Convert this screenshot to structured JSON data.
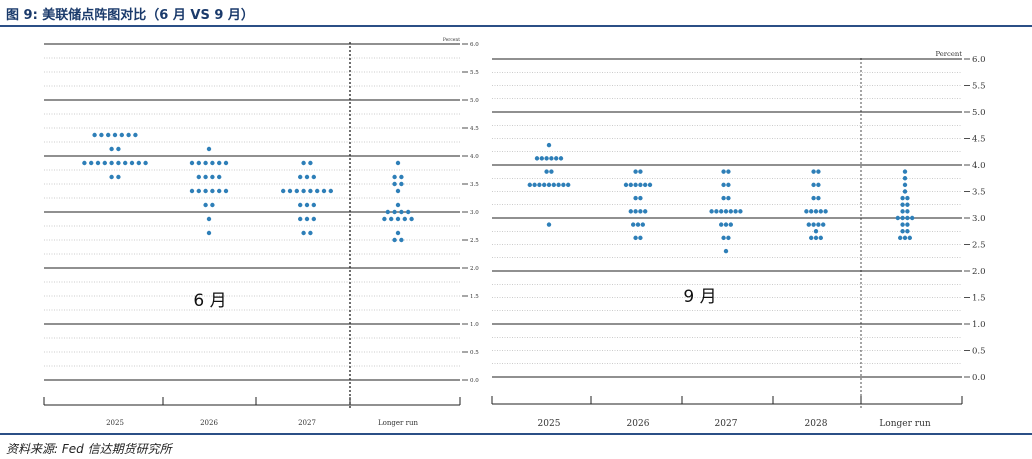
{
  "figure": {
    "title": "图 9:  美联储点阵图对比（6 月 VS 9 月）",
    "source": "资料来源:   Fed  信达期货研究所"
  },
  "chart_data": [
    {
      "type": "scatter",
      "label": "6 月",
      "unit_label": "Percent",
      "categories": [
        "2025",
        "2026",
        "2027",
        "Longer run"
      ],
      "yticks": [
        "6.0",
        "5.5",
        "5.0",
        "4.5",
        "4.0",
        "3.5",
        "3.0",
        "2.5",
        "2.0",
        "1.5",
        "1.0",
        "0.5",
        "0.0"
      ],
      "ylim": [
        0,
        6
      ],
      "dot_color": "#2e7fb8",
      "dots": [
        {
          "category": "2025",
          "rates": [
            {
              "y": 4.375,
              "n": 7
            },
            {
              "y": 4.125,
              "n": 2
            },
            {
              "y": 3.875,
              "n": 10
            },
            {
              "y": 3.625,
              "n": 2
            }
          ]
        },
        {
          "category": "2026",
          "rates": [
            {
              "y": 4.125,
              "n": 1
            },
            {
              "y": 3.875,
              "n": 6
            },
            {
              "y": 3.625,
              "n": 4
            },
            {
              "y": 3.375,
              "n": 6
            },
            {
              "y": 3.125,
              "n": 2
            },
            {
              "y": 2.875,
              "n": 1
            },
            {
              "y": 2.625,
              "n": 1
            }
          ]
        },
        {
          "category": "2027",
          "rates": [
            {
              "y": 3.875,
              "n": 2
            },
            {
              "y": 3.625,
              "n": 3
            },
            {
              "y": 3.375,
              "n": 8
            },
            {
              "y": 3.125,
              "n": 3
            },
            {
              "y": 2.875,
              "n": 3
            },
            {
              "y": 2.625,
              "n": 2
            }
          ]
        },
        {
          "category": "Longer run",
          "rates": [
            {
              "y": 3.875,
              "n": 1
            },
            {
              "y": 3.625,
              "n": 2
            },
            {
              "y": 3.5,
              "n": 2
            },
            {
              "y": 3.375,
              "n": 1
            },
            {
              "y": 3.125,
              "n": 1
            },
            {
              "y": 3.0,
              "n": 4
            },
            {
              "y": 2.875,
              "n": 5
            },
            {
              "y": 2.625,
              "n": 1
            },
            {
              "y": 2.5,
              "n": 2
            }
          ]
        }
      ]
    },
    {
      "type": "scatter",
      "label": "9 月",
      "unit_label": "Percent",
      "categories": [
        "2025",
        "2026",
        "2027",
        "2028",
        "Longer run"
      ],
      "yticks": [
        "6.0",
        "5.5",
        "5.0",
        "4.5",
        "4.0",
        "3.5",
        "3.0",
        "2.5",
        "2.0",
        "1.5",
        "1.0",
        "0.5",
        "0.0"
      ],
      "ylim": [
        0,
        6
      ],
      "dot_color": "#2e7fb8",
      "dots": [
        {
          "category": "2025",
          "rates": [
            {
              "y": 4.375,
              "n": 1
            },
            {
              "y": 4.125,
              "n": 6
            },
            {
              "y": 3.875,
              "n": 2
            },
            {
              "y": 3.625,
              "n": 9
            },
            {
              "y": 2.875,
              "n": 1
            }
          ]
        },
        {
          "category": "2026",
          "rates": [
            {
              "y": 3.875,
              "n": 2
            },
            {
              "y": 3.625,
              "n": 6
            },
            {
              "y": 3.375,
              "n": 2
            },
            {
              "y": 3.125,
              "n": 4
            },
            {
              "y": 2.875,
              "n": 3
            },
            {
              "y": 2.625,
              "n": 2
            }
          ]
        },
        {
          "category": "2027",
          "rates": [
            {
              "y": 3.875,
              "n": 2
            },
            {
              "y": 3.625,
              "n": 2
            },
            {
              "y": 3.375,
              "n": 2
            },
            {
              "y": 3.125,
              "n": 7
            },
            {
              "y": 2.875,
              "n": 3
            },
            {
              "y": 2.625,
              "n": 2
            },
            {
              "y": 2.375,
              "n": 1
            }
          ]
        },
        {
          "category": "2028",
          "rates": [
            {
              "y": 3.875,
              "n": 2
            },
            {
              "y": 3.625,
              "n": 2
            },
            {
              "y": 3.375,
              "n": 2
            },
            {
              "y": 3.125,
              "n": 5
            },
            {
              "y": 2.875,
              "n": 4
            },
            {
              "y": 2.75,
              "n": 1
            },
            {
              "y": 2.625,
              "n": 3
            }
          ]
        },
        {
          "category": "Longer run",
          "rates": [
            {
              "y": 3.875,
              "n": 1
            },
            {
              "y": 3.75,
              "n": 1
            },
            {
              "y": 3.625,
              "n": 1
            },
            {
              "y": 3.5,
              "n": 1
            },
            {
              "y": 3.375,
              "n": 2
            },
            {
              "y": 3.25,
              "n": 2
            },
            {
              "y": 3.125,
              "n": 2
            },
            {
              "y": 3.0,
              "n": 4
            },
            {
              "y": 2.875,
              "n": 2
            },
            {
              "y": 2.75,
              "n": 2
            },
            {
              "y": 2.625,
              "n": 3
            }
          ]
        }
      ]
    }
  ]
}
